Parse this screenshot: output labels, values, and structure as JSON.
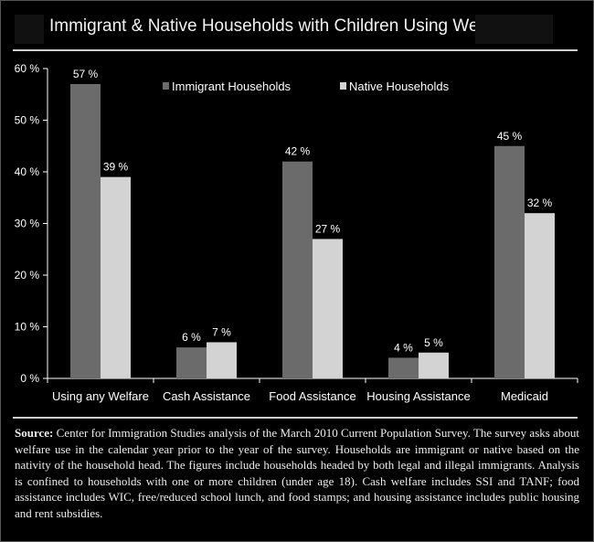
{
  "title": "Immigrant & Native Households with Children Using Welfare",
  "colors": {
    "background": "#000000",
    "immigrant": "#6b6b6b",
    "native": "#d3d3d3",
    "axis": "#ffffff",
    "text": "#ffffff"
  },
  "chart_data": {
    "type": "bar",
    "title": "Immigrant & Native Households with Children Using Welfare",
    "xlabel": "",
    "ylabel": "",
    "ylim": [
      0,
      60
    ],
    "yticks": [
      "0 %",
      "10 %",
      "20 %",
      "30 %",
      "40 %",
      "50 %",
      "60 %"
    ],
    "grid": false,
    "legend_position": "top-center",
    "categories": [
      "Using any Welfare",
      "Cash Assistance",
      "Food Assistance",
      "Housing Assistance",
      "Medicaid"
    ],
    "series": [
      {
        "name": "Immigrant Households",
        "values": [
          57,
          6,
          42,
          4,
          45
        ],
        "labels": [
          "57 %",
          "6 %",
          "42 %",
          "4 %",
          "45 %"
        ]
      },
      {
        "name": "Native Households",
        "values": [
          39,
          7,
          27,
          5,
          32
        ],
        "labels": [
          "39 %",
          "7 %",
          "27 %",
          "5 %",
          "32 %"
        ]
      }
    ]
  },
  "source": {
    "label": "Source:",
    "text": " Center for Immigration Studies analysis of the March 2010 Current Population Survey. The survey asks about welfare use in the calendar year prior to the year of the survey. Households are immigrant or native based on the nativity of the household head. The figures include households headed by both legal and illegal immigrants. Analysis is confined to households with one or more children (under age 18). Cash welfare includes SSI and TANF; food assistance includes WIC, free/reduced school lunch, and food stamps; and housing assistance includes public housing and rent subsidies."
  }
}
